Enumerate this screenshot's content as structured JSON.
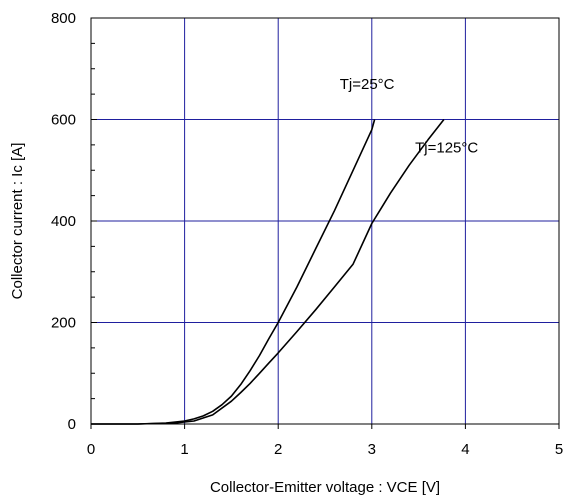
{
  "chart_data": {
    "type": "line",
    "title": "",
    "xlabel": "Collector-Emitter voltage : VCE [V]",
    "ylabel": "Collector current : Ic [A]",
    "xlim": [
      0,
      5
    ],
    "ylim": [
      0,
      800
    ],
    "x_ticks": [
      "0",
      "1",
      "2",
      "3",
      "4",
      "5"
    ],
    "y_ticks": [
      "0",
      "200",
      "400",
      "600",
      "800"
    ],
    "grid": true,
    "grid_color": "#1f1f9e",
    "line_color": "#000000",
    "series": [
      {
        "name": "Tj=25°C",
        "points": [
          [
            0.0,
            0
          ],
          [
            0.5,
            0
          ],
          [
            0.8,
            2
          ],
          [
            1.0,
            6
          ],
          [
            1.1,
            10
          ],
          [
            1.2,
            16
          ],
          [
            1.3,
            25
          ],
          [
            1.4,
            38
          ],
          [
            1.5,
            55
          ],
          [
            1.6,
            78
          ],
          [
            1.7,
            105
          ],
          [
            1.8,
            135
          ],
          [
            1.9,
            168
          ],
          [
            2.0,
            200
          ],
          [
            2.2,
            270
          ],
          [
            2.4,
            345
          ],
          [
            2.6,
            420
          ],
          [
            2.8,
            500
          ],
          [
            3.0,
            580
          ],
          [
            3.03,
            600
          ]
        ]
      },
      {
        "name": "Tj=125°C",
        "points": [
          [
            0.0,
            0
          ],
          [
            0.5,
            0
          ],
          [
            0.9,
            2
          ],
          [
            1.1,
            6
          ],
          [
            1.3,
            18
          ],
          [
            1.5,
            45
          ],
          [
            1.6,
            62
          ],
          [
            1.7,
            80
          ],
          [
            1.8,
            100
          ],
          [
            1.9,
            120
          ],
          [
            2.0,
            140
          ],
          [
            2.2,
            182
          ],
          [
            2.4,
            225
          ],
          [
            2.6,
            270
          ],
          [
            2.8,
            315
          ],
          [
            3.0,
            395
          ],
          [
            3.2,
            455
          ],
          [
            3.4,
            510
          ],
          [
            3.6,
            560
          ],
          [
            3.77,
            600
          ]
        ]
      }
    ],
    "annotations": [
      {
        "text": "Tj=25°C",
        "x": 2.95,
        "y": 660
      },
      {
        "text": "Tj=125°C",
        "x": 3.8,
        "y": 535
      }
    ]
  }
}
